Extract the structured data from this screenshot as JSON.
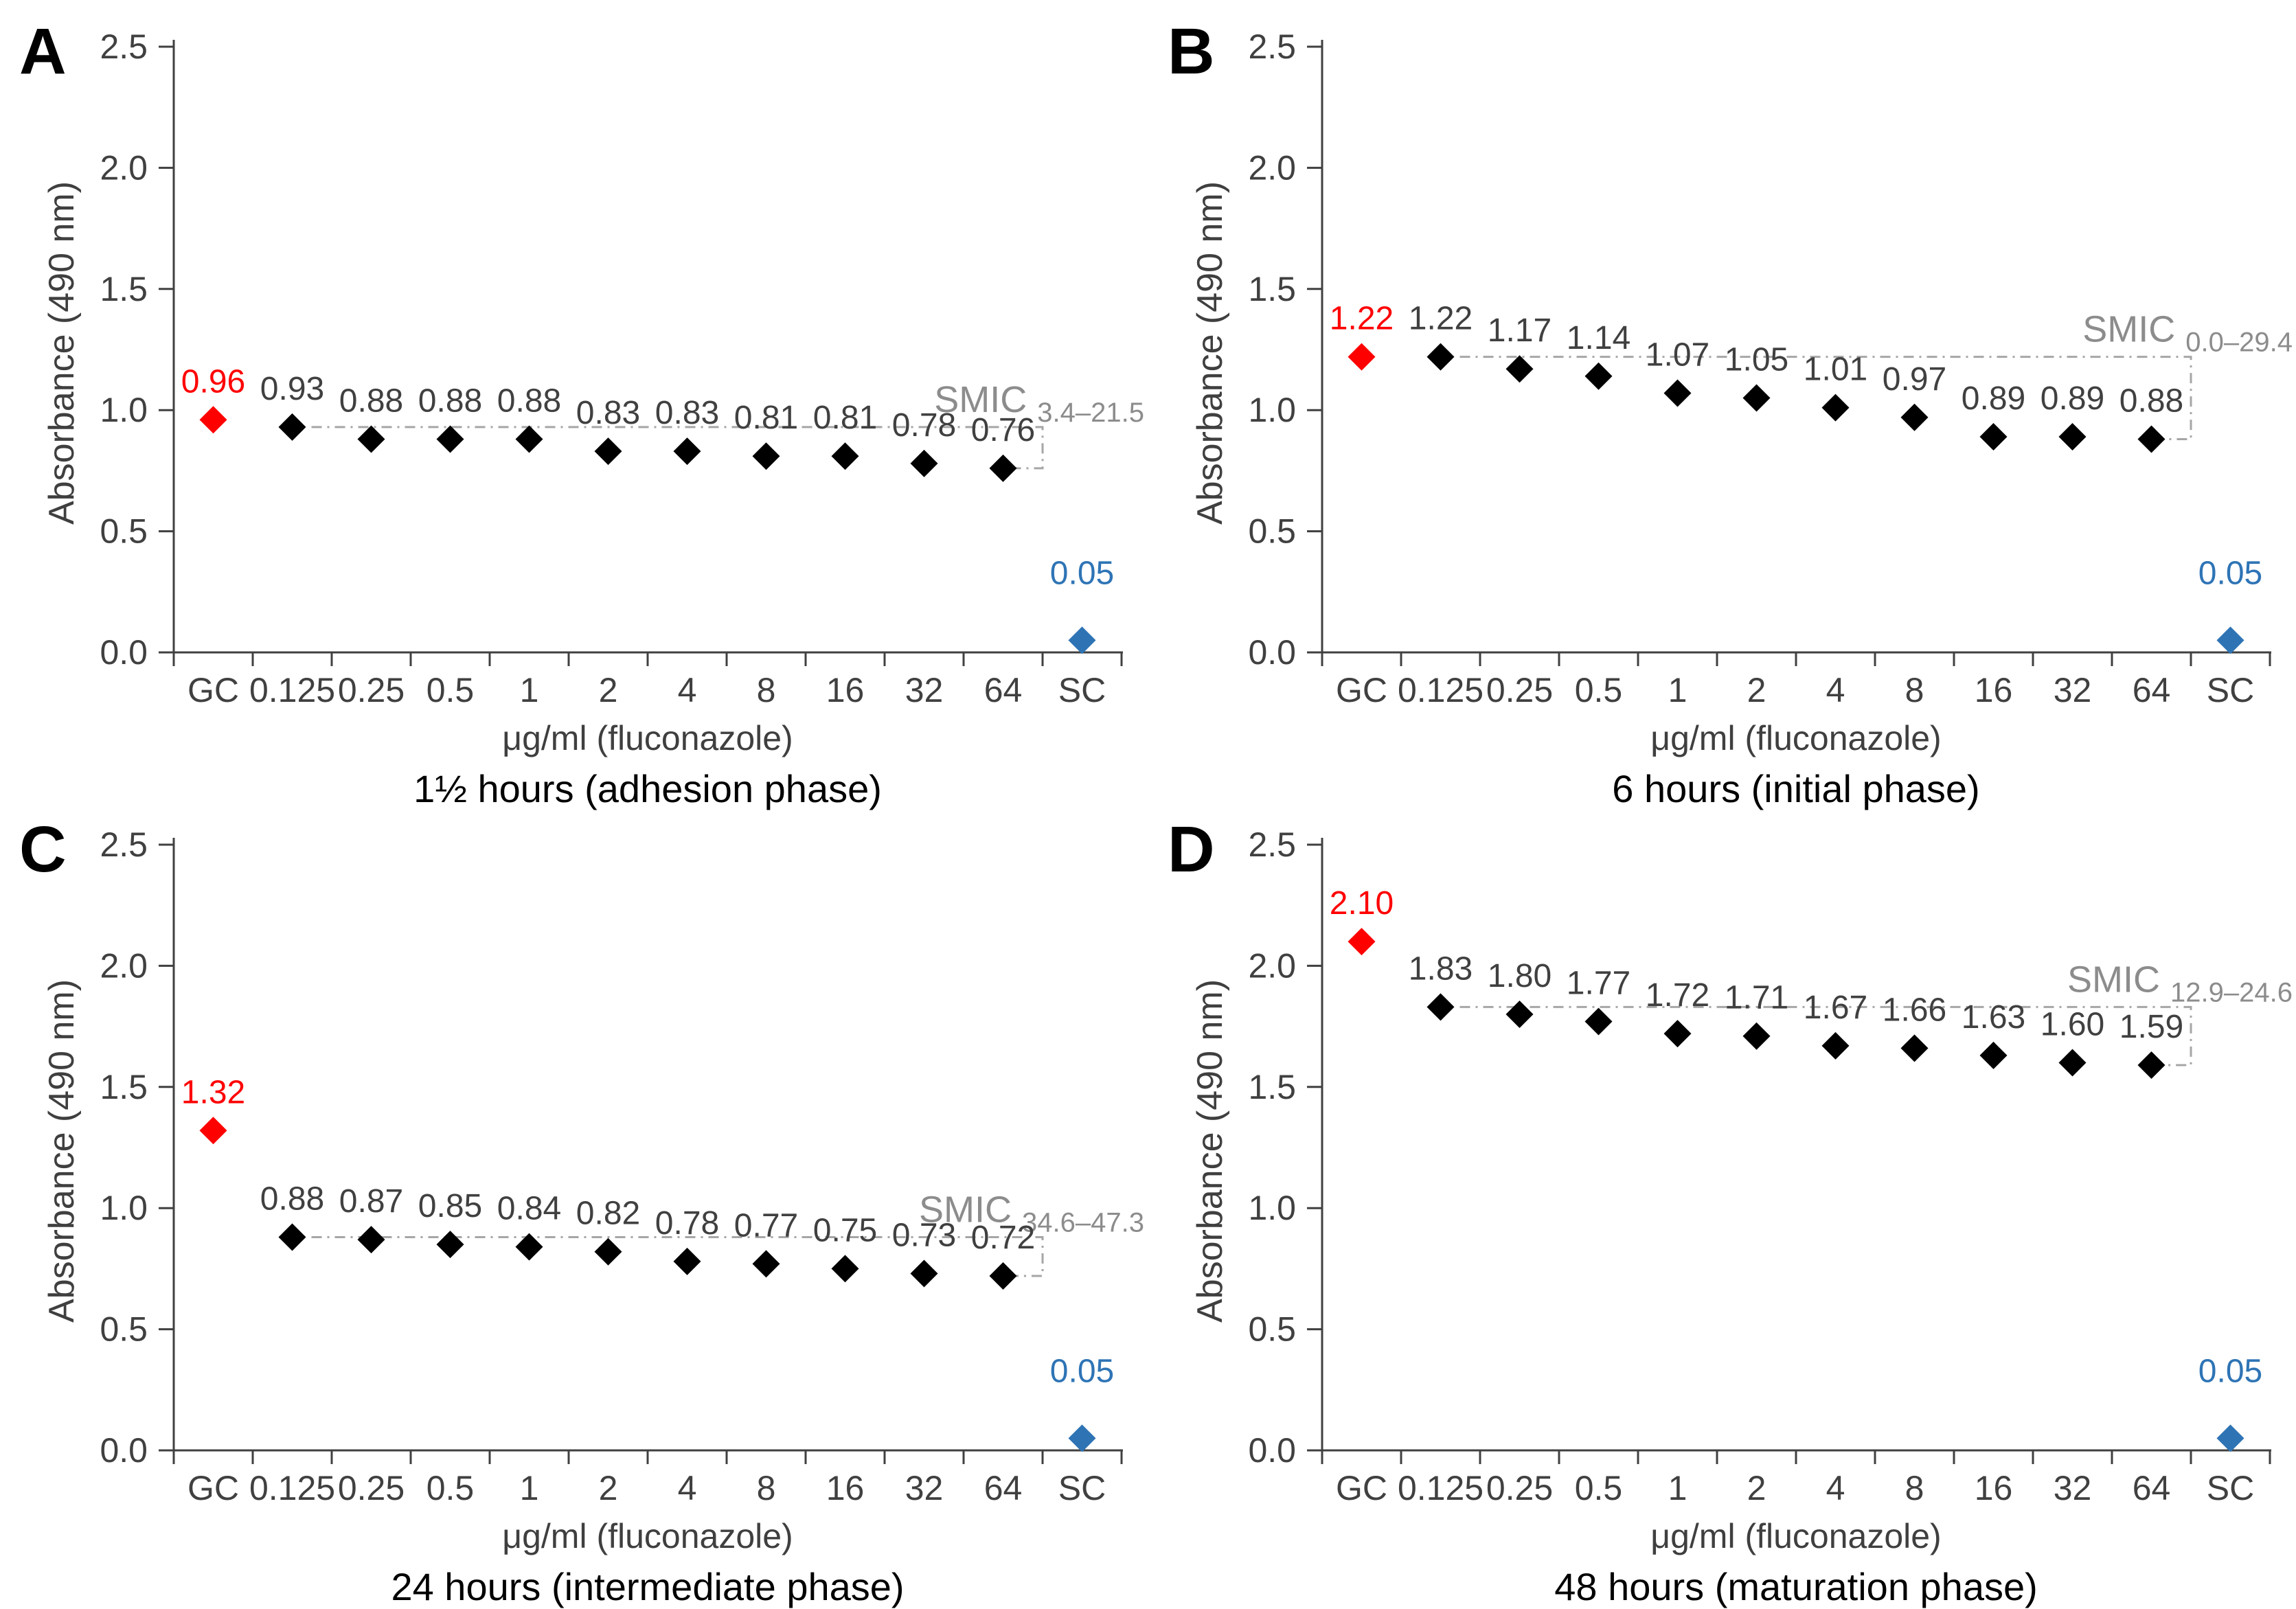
{
  "figure": {
    "background": "#FFFFFF",
    "colors": {
      "gc": "#FF0000",
      "sc": "#2E74B5",
      "treated": "#000000",
      "value_text": "#404040",
      "axis": "#404040",
      "smic_text": "#8C8C8C",
      "bracket": "#A6A6A6"
    }
  },
  "chart_data": [
    {
      "type": "scatter",
      "panel": "A",
      "ylabel": "Absorbance (490 nm)",
      "xlabel": "μg/ml (fluconazole)",
      "subtitle": "1½ hours (adhesion phase)",
      "ylim": [
        0.0,
        2.5
      ],
      "ytick_labels": [
        "0.0",
        "0.5",
        "1.0",
        "1.5",
        "2.0",
        "2.5"
      ],
      "categories": [
        "GC",
        "0.125",
        "0.25",
        "0.5",
        "1",
        "2",
        "4",
        "8",
        "16",
        "32",
        "64",
        "SC"
      ],
      "values": [
        0.96,
        0.93,
        0.88,
        0.88,
        0.88,
        0.83,
        0.83,
        0.81,
        0.81,
        0.78,
        0.76,
        0.05
      ],
      "value_labels": [
        "0.96",
        "0.93",
        "0.88",
        "0.88",
        "0.88",
        "0.83",
        "0.83",
        "0.81",
        "0.81",
        "0.78",
        "0.76",
        "0.05"
      ],
      "gc_index": 0,
      "sc_index": 11,
      "smic": {
        "label": "SMIC",
        "range": "3.4–21.5"
      }
    },
    {
      "type": "scatter",
      "panel": "B",
      "ylabel": "Absorbance (490 nm)",
      "xlabel": "μg/ml (fluconazole)",
      "subtitle": "6 hours (initial phase)",
      "ylim": [
        0.0,
        2.5
      ],
      "ytick_labels": [
        "0.0",
        "0.5",
        "1.0",
        "1.5",
        "2.0",
        "2.5"
      ],
      "categories": [
        "GC",
        "0.125",
        "0.25",
        "0.5",
        "1",
        "2",
        "4",
        "8",
        "16",
        "32",
        "64",
        "SC"
      ],
      "values": [
        1.22,
        1.22,
        1.17,
        1.14,
        1.07,
        1.05,
        1.01,
        0.97,
        0.89,
        0.89,
        0.88,
        0.05
      ],
      "value_labels": [
        "1.22",
        "1.22",
        "1.17",
        "1.14",
        "1.07",
        "1.05",
        "1.01",
        "0.97",
        "0.89",
        "0.89",
        "0.88",
        "0.05"
      ],
      "gc_index": 0,
      "sc_index": 11,
      "smic": {
        "label": "SMIC",
        "range": "0.0–29.4"
      }
    },
    {
      "type": "scatter",
      "panel": "C",
      "ylabel": "Absorbance (490 nm)",
      "xlabel": "μg/ml (fluconazole)",
      "subtitle": "24 hours (intermediate phase)",
      "ylim": [
        0.0,
        2.5
      ],
      "ytick_labels": [
        "0.0",
        "0.5",
        "1.0",
        "1.5",
        "2.0",
        "2.5"
      ],
      "categories": [
        "GC",
        "0.125",
        "0.25",
        "0.5",
        "1",
        "2",
        "4",
        "8",
        "16",
        "32",
        "64",
        "SC"
      ],
      "values": [
        1.32,
        0.88,
        0.87,
        0.85,
        0.84,
        0.82,
        0.78,
        0.77,
        0.75,
        0.73,
        0.72,
        0.05
      ],
      "value_labels": [
        "1.32",
        "0.88",
        "0.87",
        "0.85",
        "0.84",
        "0.82",
        "0.78",
        "0.77",
        "0.75",
        "0.73",
        "0.72",
        "0.05"
      ],
      "gc_index": 0,
      "sc_index": 11,
      "smic": {
        "label": "SMIC",
        "range": "34.6–47.3"
      }
    },
    {
      "type": "scatter",
      "panel": "D",
      "ylabel": "Absorbance (490 nm)",
      "xlabel": "μg/ml (fluconazole)",
      "subtitle": "48 hours (maturation phase)",
      "ylim": [
        0.0,
        2.5
      ],
      "ytick_labels": [
        "0.0",
        "0.5",
        "1.0",
        "1.5",
        "2.0",
        "2.5"
      ],
      "categories": [
        "GC",
        "0.125",
        "0.25",
        "0.5",
        "1",
        "2",
        "4",
        "8",
        "16",
        "32",
        "64",
        "SC"
      ],
      "values": [
        2.1,
        1.83,
        1.8,
        1.77,
        1.72,
        1.71,
        1.67,
        1.66,
        1.63,
        1.6,
        1.59,
        0.05
      ],
      "value_labels": [
        "2.10",
        "1.83",
        "1.80",
        "1.77",
        "1.72",
        "1.71",
        "1.67",
        "1.66",
        "1.63",
        "1.60",
        "1.59",
        "0.05"
      ],
      "gc_index": 0,
      "sc_index": 11,
      "smic": {
        "label": "SMIC",
        "range": "12.9–24.6"
      }
    }
  ]
}
